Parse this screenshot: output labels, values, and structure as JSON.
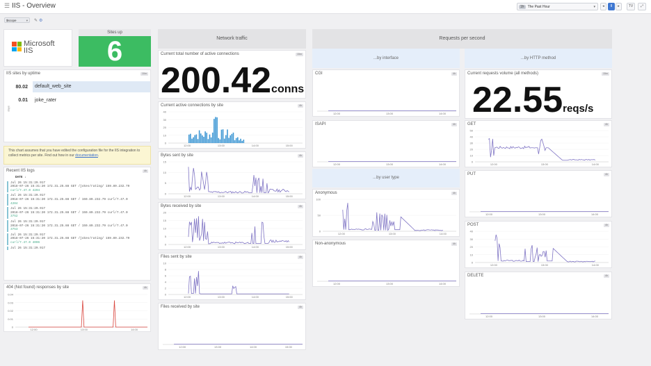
{
  "header": {
    "title": "IIS - Overview",
    "timeframe": "The Past Hour",
    "timeframe_icon": "1h",
    "template_var": "$scope",
    "btn_pause": "II",
    "btn_back": "◂",
    "btn_fwd": "▸",
    "btn_tv": "TV",
    "btn_fullscreen": "⤢"
  },
  "colors": {
    "series": "#7f74c4",
    "bar": "#3d97d4",
    "error": "#d9443c",
    "sites_up": "#3cbc62",
    "highlight": "#dfe9f5"
  },
  "logo": {
    "name": "Microsoft",
    "product": "IIS"
  },
  "sites_up": {
    "label": "Sites up",
    "value": "6"
  },
  "uptime": {
    "title": "IIS sites by uptime",
    "badge": "10m",
    "axis": "days",
    "rows": [
      {
        "value": "80.02",
        "name": "default_web_site"
      },
      {
        "value": "0.01",
        "name": "joke_rater"
      }
    ]
  },
  "note": {
    "text": "This chart assumes that you have edited the configuration file for the IIS integration to collect metrics per site. Find out how in our ",
    "link": "documentation",
    "end": "."
  },
  "logs": {
    "title": "Recent IIS logs",
    "badge": "4h",
    "col": "DATE ↓",
    "lines": [
      {
        "t": "Jul 26 15:31:29.917",
        "m": "2018-07-26 15:31:20 172.31.25.88 GET /jokes/rating/ 159.89.232.79",
        "a": "curl/7.47.0 4204"
      },
      {
        "t": "Jul 26 15:31:29.917",
        "m": "2018-07-26 15:31:20 172.31.25.88 GET / 159.89.232.79 curl/7.47.0",
        "a": "4204"
      },
      {
        "t": "Jul 26 15:31:29.917",
        "m": "2018-07-26 15:31:20 172.31.25.88 GET / 159.89.232.79 curl/7.47.0",
        "a": "3752"
      },
      {
        "t": "Jul 26 15:31:29.917",
        "m": "2018-07-26 15:31:20 172.31.25.88 GET / 159.89.232.79 curl/7.47.0",
        "a": "3753"
      },
      {
        "t": "Jul 26 15:31:29.917",
        "m": "2018-07-26 15:31:20 172.31.25.88 GET /jokes/rating/ 159.89.232.79",
        "a": "curl/7.47.0 4006"
      },
      {
        "t": "Jul 26 15:31:29.917",
        "m": "",
        "a": ""
      }
    ]
  },
  "err404": {
    "title": "404 (Not found) responses by site",
    "badge": "4h",
    "yticks": [
      "0.04",
      "0.03",
      "0.02",
      "0.01",
      "0"
    ],
    "xticks": [
      "12:00",
      "13:00",
      "14:00"
    ]
  },
  "network": {
    "header": "Network traffic",
    "conn_title": "Current total number of active connections",
    "conn_badge": "15m",
    "conn_value": "200.42",
    "conn_unit": "conns"
  },
  "charts": {
    "conn_site": {
      "title": "Current active connections by site",
      "badge": "4h",
      "yticks": [
        "40",
        "30",
        "20",
        "10",
        "0"
      ],
      "xticks": [
        "12:00",
        "13:00",
        "14:00",
        "15:00"
      ]
    },
    "bytes_sent": {
      "title": "Bytes sent by site",
      "badge": "4h",
      "yticks": [
        "15",
        "10",
        "5",
        "0"
      ],
      "xticks": [
        "12:00",
        "13:00",
        "14:00",
        "15:00"
      ]
    },
    "bytes_recv": {
      "title": "Bytes received by site",
      "badge": "4h",
      "yticks": [
        "20",
        "15",
        "10",
        "5",
        "0"
      ],
      "xticks": [
        "12:00",
        "13:00",
        "14:00",
        "15:00"
      ]
    },
    "files_sent": {
      "title": "Files sent by site",
      "badge": "4h",
      "yticks": [
        "10",
        "8",
        "6",
        "4",
        "2",
        "0"
      ],
      "xticks": [
        "12:00",
        "13:00",
        "14:00",
        "15:00"
      ]
    },
    "files_recv": {
      "title": "Files received by site",
      "badge": "4h",
      "yticks": [],
      "xticks": [
        "12:00",
        "13:00",
        "14:00",
        "15:00"
      ]
    },
    "cgi": {
      "title": "CGI",
      "badge": "4h",
      "yticks": [],
      "xticks": [
        "12:00",
        "13:00",
        "14:00"
      ]
    },
    "isapi": {
      "title": "ISAPI",
      "badge": "4h",
      "yticks": [],
      "xticks": [
        "12:00",
        "13:00",
        "14:00"
      ]
    },
    "anon": {
      "title": "Anonymous",
      "badge": "4h",
      "yticks": [
        "100",
        "50",
        "0"
      ],
      "xticks": [
        "12:00",
        "13:00",
        "14:00"
      ]
    },
    "nonanon": {
      "title": "Non-anonymous",
      "badge": "4h",
      "yticks": [],
      "xticks": [
        "12:00",
        "13:00",
        "14:00"
      ]
    },
    "get": {
      "title": "GET",
      "badge": "4h",
      "yticks": [
        "50",
        "40",
        "30",
        "20",
        "10",
        "0"
      ],
      "xticks": [
        "12:00",
        "13:00",
        "14:00"
      ]
    },
    "put": {
      "title": "PUT",
      "badge": "4h",
      "yticks": [],
      "xticks": [
        "12:00",
        "13:00",
        "14:00"
      ]
    },
    "post": {
      "title": "POST",
      "badge": "4h",
      "yticks": [
        "40",
        "30",
        "20",
        "10",
        "0"
      ],
      "xticks": [
        "12:00",
        "13:00",
        "14:00"
      ]
    },
    "delete": {
      "title": "DELETE",
      "badge": "4h",
      "yticks": [],
      "xticks": [
        "12:00",
        "13:00",
        "14:00"
      ]
    }
  },
  "requests": {
    "header": "Requests per second",
    "by_interface": "...by interface",
    "by_method": "...by HTTP method",
    "by_user": "...by user type",
    "vol_title": "Current requests volume (all methods)",
    "vol_badge": "15m",
    "vol_value": "22.55",
    "vol_unit": "reqs/s"
  }
}
